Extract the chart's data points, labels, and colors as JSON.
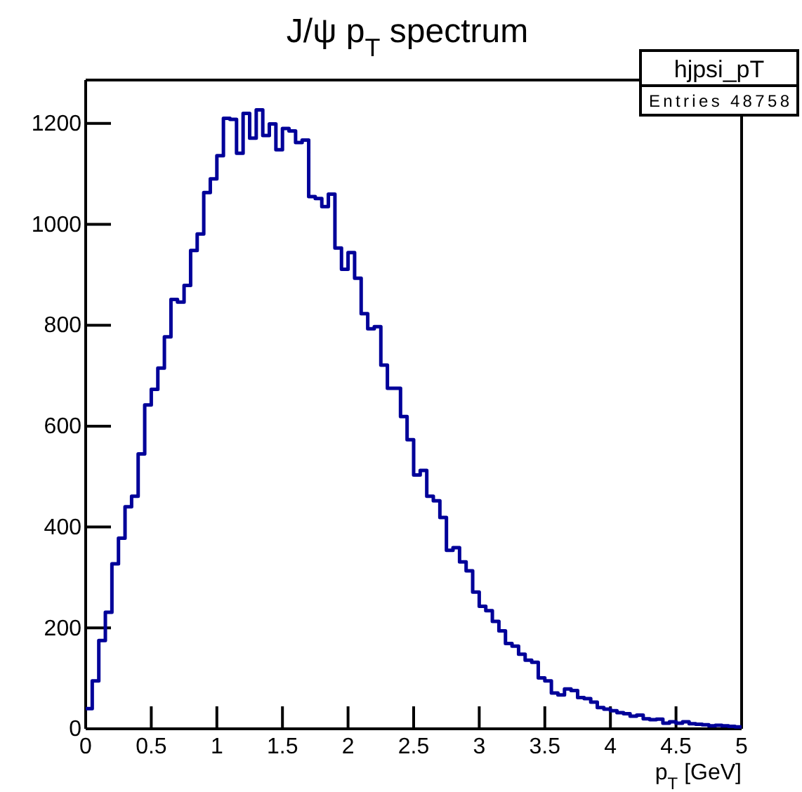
{
  "chart_data": {
    "type": "histogram",
    "title": "J/ψ p$_{T}$ spectrum",
    "xlabel": "p$_{T}$ [GeV]",
    "annotations": [
      "hjpsi_pT",
      "Entries 48758"
    ],
    "color": "#000099",
    "bins": [
      0,
      0.05,
      0.1,
      0.15,
      0.2,
      0.25,
      0.3,
      0.35,
      0.4,
      0.45,
      0.5,
      0.55,
      0.6,
      0.65,
      0.7,
      0.75,
      0.8,
      0.85,
      0.9,
      0.95,
      1,
      1.05,
      1.1,
      1.15,
      1.2,
      1.25,
      1.3,
      1.35,
      1.4,
      1.45,
      1.5,
      1.55,
      1.6,
      1.65,
      1.7,
      1.75,
      1.8,
      1.85,
      1.9,
      1.95,
      2,
      2.05,
      2.1,
      2.15,
      2.2,
      2.25,
      2.3,
      2.35,
      2.4,
      2.45,
      2.5,
      2.55,
      2.6,
      2.65,
      2.7,
      2.75,
      2.8,
      2.85,
      2.9,
      2.95,
      3,
      3.05,
      3.1,
      3.15,
      3.2,
      3.25,
      3.3,
      3.35,
      3.4,
      3.45,
      3.5,
      3.55,
      3.6,
      3.65,
      3.7,
      3.75,
      3.8,
      3.85,
      3.9,
      3.95,
      4,
      4.05,
      4.1,
      4.15,
      4.2,
      4.25,
      4.3,
      4.35,
      4.4,
      4.45,
      4.5,
      4.55,
      4.6,
      4.65,
      4.7,
      4.75,
      4.8,
      4.85,
      4.9,
      4.95,
      5
    ],
    "values": [
      40,
      95,
      175,
      231,
      327,
      378,
      440,
      461,
      545,
      642,
      673,
      715,
      777,
      851,
      846,
      879,
      948,
      981,
      1063,
      1090,
      1136,
      1210,
      1208,
      1141,
      1220,
      1171,
      1227,
      1176,
      1199,
      1148,
      1190,
      1185,
      1162,
      1167,
      1055,
      1051,
      1035,
      1060,
      953,
      911,
      944,
      893,
      823,
      793,
      797,
      721,
      675,
      675,
      619,
      573,
      503,
      512,
      461,
      452,
      419,
      354,
      359,
      331,
      313,
      271,
      243,
      234,
      213,
      194,
      169,
      164,
      148,
      136,
      132,
      101,
      95,
      71,
      67,
      79,
      76,
      62,
      60,
      53,
      42,
      39,
      36,
      32,
      30,
      25,
      27,
      20,
      18,
      19,
      11,
      14,
      11,
      14,
      10,
      9,
      8,
      6,
      7,
      6,
      5,
      4
    ],
    "xlim": [
      0,
      5
    ],
    "ylim": [
      0,
      1286
    ],
    "xticks": [
      0,
      0.5,
      1,
      1.5,
      2,
      2.5,
      3,
      3.5,
      4,
      4.5,
      5
    ],
    "yticks": [
      0,
      200,
      400,
      600,
      800,
      1000,
      1200
    ]
  }
}
